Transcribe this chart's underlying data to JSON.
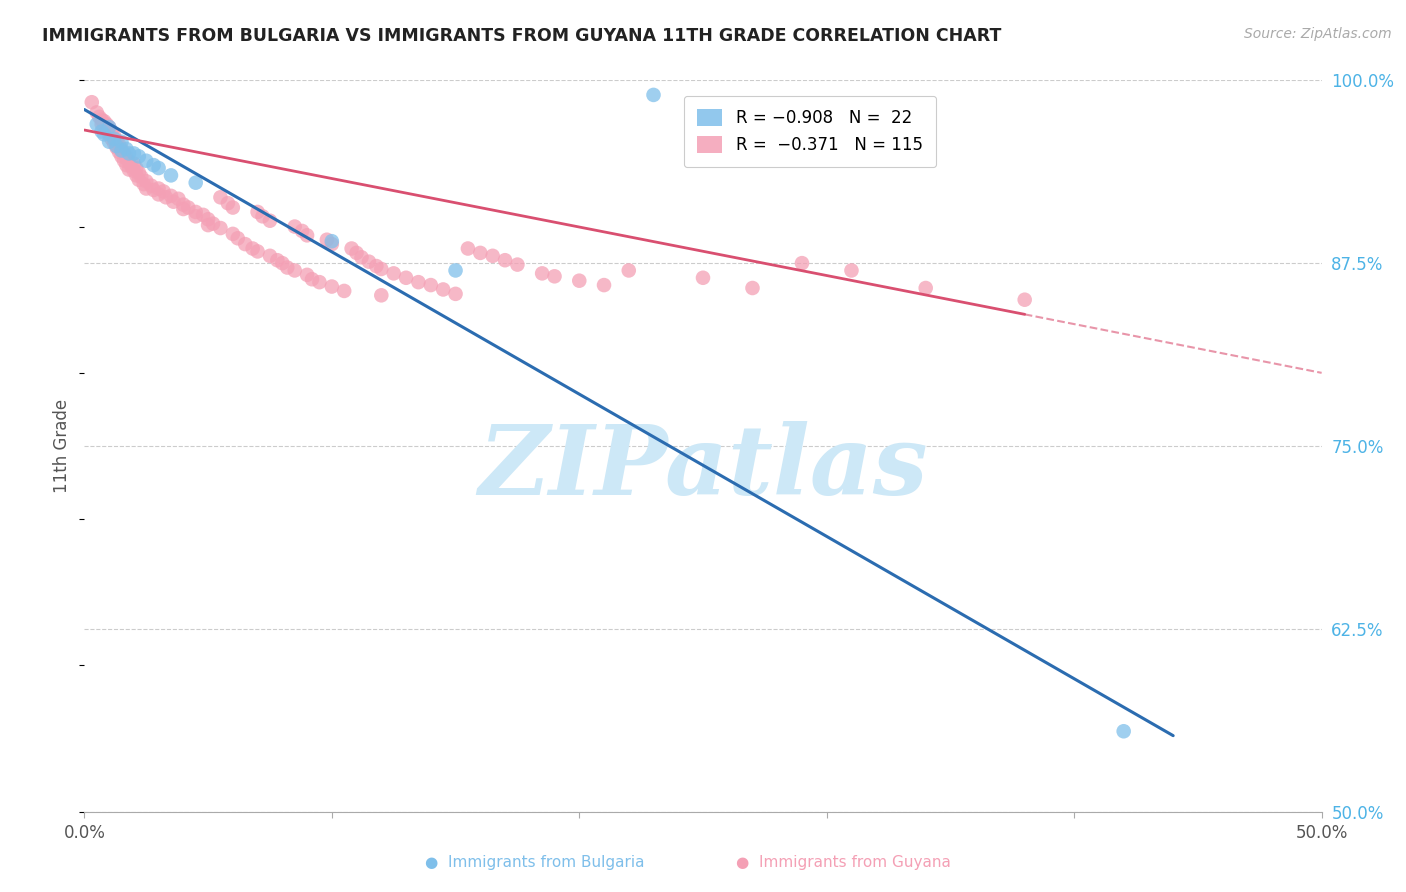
{
  "title": "IMMIGRANTS FROM BULGARIA VS IMMIGRANTS FROM GUYANA 11TH GRADE CORRELATION CHART",
  "source": "Source: ZipAtlas.com",
  "ylabel": "11th Grade",
  "xlim": [
    0.0,
    0.5
  ],
  "ylim": [
    0.5,
    1.0
  ],
  "xticks": [
    0.0,
    0.1,
    0.2,
    0.3,
    0.4,
    0.5
  ],
  "xtick_labels": [
    "0.0%",
    "",
    "",
    "",
    "",
    "50.0%"
  ],
  "ytick_labels_right": [
    "100.0%",
    "87.5%",
    "75.0%",
    "62.5%",
    "50.0%"
  ],
  "yticks_right": [
    1.0,
    0.875,
    0.75,
    0.625,
    0.5
  ],
  "bulgaria_color": "#7fbfea",
  "guyana_color": "#f4a0b5",
  "title_color": "#222222",
  "source_color": "#aaaaaa",
  "watermark_text": "ZIPatlas",
  "watermark_color": "#cde8f7",
  "bulgaria_line_color": "#2b6cb0",
  "guyana_line_color": "#d94f70",
  "bulgaria_scatter": [
    [
      0.005,
      0.97
    ],
    [
      0.007,
      0.965
    ],
    [
      0.008,
      0.963
    ],
    [
      0.01,
      0.968
    ],
    [
      0.01,
      0.958
    ],
    [
      0.012,
      0.96
    ],
    [
      0.013,
      0.955
    ],
    [
      0.015,
      0.958
    ],
    [
      0.015,
      0.952
    ],
    [
      0.017,
      0.953
    ],
    [
      0.018,
      0.95
    ],
    [
      0.02,
      0.95
    ],
    [
      0.022,
      0.948
    ],
    [
      0.025,
      0.945
    ],
    [
      0.028,
      0.942
    ],
    [
      0.03,
      0.94
    ],
    [
      0.035,
      0.935
    ],
    [
      0.045,
      0.93
    ],
    [
      0.1,
      0.89
    ],
    [
      0.15,
      0.87
    ],
    [
      0.42,
      0.555
    ],
    [
      0.23,
      0.99
    ]
  ],
  "guyana_scatter": [
    [
      0.003,
      0.985
    ],
    [
      0.005,
      0.978
    ],
    [
      0.006,
      0.975
    ],
    [
      0.007,
      0.973
    ],
    [
      0.007,
      0.97
    ],
    [
      0.008,
      0.972
    ],
    [
      0.008,
      0.968
    ],
    [
      0.009,
      0.97
    ],
    [
      0.009,
      0.966
    ],
    [
      0.01,
      0.968
    ],
    [
      0.01,
      0.963
    ],
    [
      0.011,
      0.965
    ],
    [
      0.011,
      0.96
    ],
    [
      0.012,
      0.962
    ],
    [
      0.012,
      0.957
    ],
    [
      0.013,
      0.959
    ],
    [
      0.013,
      0.954
    ],
    [
      0.014,
      0.956
    ],
    [
      0.014,
      0.951
    ],
    [
      0.015,
      0.953
    ],
    [
      0.015,
      0.948
    ],
    [
      0.016,
      0.95
    ],
    [
      0.016,
      0.945
    ],
    [
      0.017,
      0.947
    ],
    [
      0.017,
      0.942
    ],
    [
      0.018,
      0.944
    ],
    [
      0.018,
      0.939
    ],
    [
      0.019,
      0.941
    ],
    [
      0.02,
      0.943
    ],
    [
      0.02,
      0.938
    ],
    [
      0.021,
      0.94
    ],
    [
      0.021,
      0.935
    ],
    [
      0.022,
      0.937
    ],
    [
      0.022,
      0.932
    ],
    [
      0.023,
      0.934
    ],
    [
      0.024,
      0.929
    ],
    [
      0.025,
      0.931
    ],
    [
      0.025,
      0.926
    ],
    [
      0.027,
      0.928
    ],
    [
      0.028,
      0.925
    ],
    [
      0.03,
      0.926
    ],
    [
      0.03,
      0.922
    ],
    [
      0.032,
      0.924
    ],
    [
      0.033,
      0.92
    ],
    [
      0.035,
      0.921
    ],
    [
      0.036,
      0.917
    ],
    [
      0.038,
      0.919
    ],
    [
      0.04,
      0.915
    ],
    [
      0.04,
      0.912
    ],
    [
      0.042,
      0.913
    ],
    [
      0.045,
      0.91
    ],
    [
      0.045,
      0.907
    ],
    [
      0.048,
      0.908
    ],
    [
      0.05,
      0.905
    ],
    [
      0.05,
      0.901
    ],
    [
      0.052,
      0.902
    ],
    [
      0.055,
      0.899
    ],
    [
      0.055,
      0.92
    ],
    [
      0.058,
      0.916
    ],
    [
      0.06,
      0.913
    ],
    [
      0.06,
      0.895
    ],
    [
      0.062,
      0.892
    ],
    [
      0.065,
      0.888
    ],
    [
      0.068,
      0.885
    ],
    [
      0.07,
      0.883
    ],
    [
      0.07,
      0.91
    ],
    [
      0.072,
      0.907
    ],
    [
      0.075,
      0.904
    ],
    [
      0.075,
      0.88
    ],
    [
      0.078,
      0.877
    ],
    [
      0.08,
      0.875
    ],
    [
      0.082,
      0.872
    ],
    [
      0.085,
      0.87
    ],
    [
      0.085,
      0.9
    ],
    [
      0.088,
      0.897
    ],
    [
      0.09,
      0.894
    ],
    [
      0.09,
      0.867
    ],
    [
      0.092,
      0.864
    ],
    [
      0.095,
      0.862
    ],
    [
      0.098,
      0.891
    ],
    [
      0.1,
      0.888
    ],
    [
      0.1,
      0.859
    ],
    [
      0.105,
      0.856
    ],
    [
      0.108,
      0.885
    ],
    [
      0.11,
      0.882
    ],
    [
      0.112,
      0.879
    ],
    [
      0.115,
      0.876
    ],
    [
      0.118,
      0.873
    ],
    [
      0.12,
      0.871
    ],
    [
      0.12,
      0.853
    ],
    [
      0.125,
      0.868
    ],
    [
      0.13,
      0.865
    ],
    [
      0.135,
      0.862
    ],
    [
      0.14,
      0.86
    ],
    [
      0.145,
      0.857
    ],
    [
      0.15,
      0.854
    ],
    [
      0.155,
      0.885
    ],
    [
      0.16,
      0.882
    ],
    [
      0.165,
      0.88
    ],
    [
      0.17,
      0.877
    ],
    [
      0.175,
      0.874
    ],
    [
      0.185,
      0.868
    ],
    [
      0.19,
      0.866
    ],
    [
      0.2,
      0.863
    ],
    [
      0.21,
      0.86
    ],
    [
      0.22,
      0.87
    ],
    [
      0.25,
      0.865
    ],
    [
      0.27,
      0.858
    ],
    [
      0.29,
      0.875
    ],
    [
      0.31,
      0.87
    ],
    [
      0.34,
      0.858
    ],
    [
      0.38,
      0.85
    ]
  ],
  "bulgaria_line": {
    "x0": 0.0,
    "y0": 0.98,
    "x1": 0.44,
    "y1": 0.552
  },
  "guyana_line_solid": {
    "x0": 0.0,
    "y0": 0.966,
    "x1": 0.38,
    "y1": 0.84
  },
  "guyana_line_dash": {
    "x0": 0.38,
    "y0": 0.84,
    "x1": 0.5,
    "y1": 0.8
  }
}
